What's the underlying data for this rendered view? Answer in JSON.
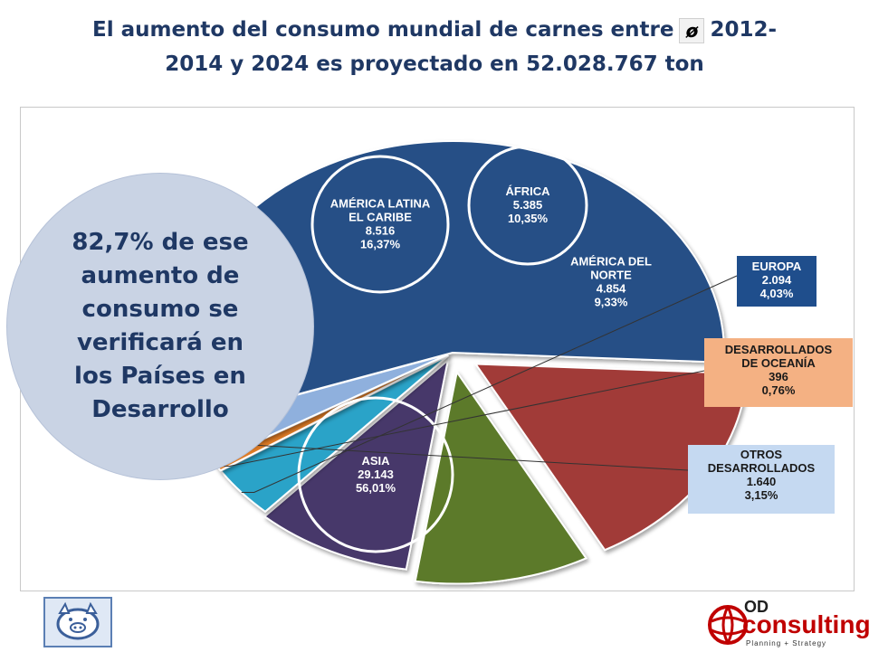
{
  "title": {
    "part1": "El aumento del consumo mundial de carnes entre",
    "symbol": "ø",
    "part2": "2012-",
    "line2": "2014 y 2024 es proyectado en 52.028.767 ton"
  },
  "bubble_text": "82,7% de ese aumento de consumo se verificará en los Países en Desarrollo",
  "colors": {
    "asia": "#264f86",
    "latam": "#a13a37",
    "africa": "#5c7a2a",
    "norte": "#46396a",
    "europa": "#2aa3c8",
    "oceania": "#e07b28",
    "otros": "#8fb0dd",
    "title": "#1f3864"
  },
  "logos": {
    "od": "OD",
    "consulting": "consulting",
    "tagline": "Planning + Strategy"
  },
  "chart_data": {
    "type": "pie",
    "exploded": true,
    "slices": [
      {
        "label_lines": [
          "ASIA"
        ],
        "value": 29143,
        "value_text": "29.143",
        "percent": 56.01,
        "percent_text": "56,01%"
      },
      {
        "label_lines": [
          "AMÉRICA LATINA",
          "EL CARIBE"
        ],
        "value": 8516,
        "value_text": "8.516",
        "percent": 16.37,
        "percent_text": "16,37%"
      },
      {
        "label_lines": [
          "ÁFRICA"
        ],
        "value": 5385,
        "value_text": "5.385",
        "percent": 10.35,
        "percent_text": "10,35%"
      },
      {
        "label_lines": [
          "AMÉRICA DEL",
          "NORTE"
        ],
        "value": 4854,
        "value_text": "4.854",
        "percent": 9.33,
        "percent_text": "9,33%"
      },
      {
        "label_lines": [
          "EUROPA"
        ],
        "value": 2094,
        "value_text": "2.094",
        "percent": 4.03,
        "percent_text": "4,03%"
      },
      {
        "label_lines": [
          "DESARROLLADOS",
          "DE OCEANÍA"
        ],
        "value": 396,
        "value_text": "396",
        "percent": 0.76,
        "percent_text": "0,76%"
      },
      {
        "label_lines": [
          "OTROS",
          "DESARROLLADOS"
        ],
        "value": 1640,
        "value_text": "1.640",
        "percent": 3.15,
        "percent_text": "3,15%"
      }
    ]
  }
}
